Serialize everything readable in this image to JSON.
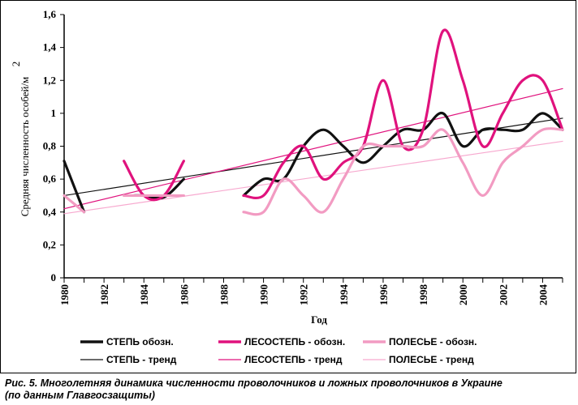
{
  "chart_data": {
    "type": "line",
    "xlabel": "Год",
    "ylabel": "Средняя численность особей/м",
    "ylabel_sup": "2",
    "xlim": [
      1980,
      2005
    ],
    "ylim": [
      0,
      1.6
    ],
    "x_ticks": [
      "1980",
      "1982",
      "1984",
      "1986",
      "1988",
      "1990",
      "1992",
      "1994",
      "1996",
      "1998",
      "2000",
      "2002",
      "2004"
    ],
    "y_ticks": [
      "0",
      "0,2",
      "0,4",
      "0,6",
      "0,8",
      "1",
      "1,2",
      "1,4",
      "1,6"
    ],
    "grid": false,
    "legend_position": "bottom",
    "series": [
      {
        "name": "СТЕПЬ обозн.",
        "color": "#111111",
        "style": "observed",
        "segments": [
          [
            [
              1980,
              0.71
            ],
            [
              1981,
              0.4
            ]
          ],
          [
            [
              1983.5,
              0.5
            ],
            [
              1984,
              0.5
            ],
            [
              1985,
              0.49
            ],
            [
              1986,
              0.6
            ]
          ],
          [
            [
              1989,
              0.5
            ],
            [
              1990,
              0.6
            ],
            [
              1991,
              0.6
            ],
            [
              1992,
              0.8
            ],
            [
              1993,
              0.9
            ],
            [
              1994,
              0.8
            ],
            [
              1995,
              0.7
            ],
            [
              1996,
              0.8
            ],
            [
              1997,
              0.9
            ],
            [
              1998,
              0.9
            ],
            [
              1999,
              1.0
            ],
            [
              2000,
              0.8
            ],
            [
              2001,
              0.9
            ],
            [
              2002,
              0.9
            ],
            [
              2003,
              0.9
            ],
            [
              2004,
              1.0
            ],
            [
              2005,
              0.9
            ]
          ]
        ]
      },
      {
        "name": "ЛЕСОСТЕПЬ - обозн.",
        "color": "#e0127d",
        "style": "observed",
        "segments": [
          [
            [
              1983,
              0.71
            ],
            [
              1984,
              0.5
            ],
            [
              1985,
              0.5
            ],
            [
              1986,
              0.71
            ]
          ],
          [
            [
              1989,
              0.5
            ],
            [
              1990,
              0.5
            ],
            [
              1991,
              0.7
            ],
            [
              1992,
              0.8
            ],
            [
              1993,
              0.6
            ],
            [
              1994,
              0.7
            ],
            [
              1995,
              0.8
            ],
            [
              1996,
              1.2
            ],
            [
              1997,
              0.8
            ],
            [
              1998,
              0.9
            ],
            [
              1999,
              1.5
            ],
            [
              2000,
              1.2
            ],
            [
              2001,
              0.8
            ],
            [
              2002,
              1.0
            ],
            [
              2003,
              1.2
            ],
            [
              2004,
              1.2
            ],
            [
              2005,
              0.9
            ]
          ]
        ]
      },
      {
        "name": "ПОЛЕСЬЕ - обозн.",
        "color": "#f29bc2",
        "style": "observed",
        "segments": [
          [
            [
              1980,
              0.5
            ],
            [
              1981,
              0.4
            ]
          ],
          [
            [
              1983,
              0.5
            ],
            [
              1984,
              0.5
            ],
            [
              1985,
              0.5
            ],
            [
              1986,
              0.5
            ]
          ],
          [
            [
              1989,
              0.4
            ],
            [
              1990,
              0.4
            ],
            [
              1991,
              0.6
            ],
            [
              1992,
              0.5
            ],
            [
              1993,
              0.4
            ],
            [
              1994,
              0.6
            ],
            [
              1995,
              0.8
            ],
            [
              1996,
              0.8
            ],
            [
              1997,
              0.8
            ],
            [
              1998,
              0.8
            ],
            [
              1999,
              0.9
            ],
            [
              2000,
              0.7
            ],
            [
              2001,
              0.5
            ],
            [
              2002,
              0.7
            ],
            [
              2003,
              0.8
            ],
            [
              2004,
              0.9
            ],
            [
              2005,
              0.9
            ]
          ]
        ]
      },
      {
        "name": "СТЕПЬ - тренд",
        "color": "#111111",
        "style": "trend",
        "segments": [
          [
            [
              1980,
              0.5
            ],
            [
              2005,
              0.97
            ]
          ]
        ]
      },
      {
        "name": "ЛЕСОСТЕПЬ - тренд",
        "color": "#e0127d",
        "style": "trend",
        "segments": [
          [
            [
              1980,
              0.42
            ],
            [
              2005,
              1.15
            ]
          ]
        ]
      },
      {
        "name": "ПОЛЕСЬЕ - тренд",
        "color": "#f7a9cf",
        "style": "trend",
        "segments": [
          [
            [
              1980,
              0.39
            ],
            [
              2005,
              0.83
            ]
          ]
        ]
      }
    ]
  },
  "caption": {
    "line1": "Рис. 5.  Многолетняя динамика численности проволочников и ложных проволочников в Украине",
    "line2": "(по данным Главгосзащиты)"
  }
}
